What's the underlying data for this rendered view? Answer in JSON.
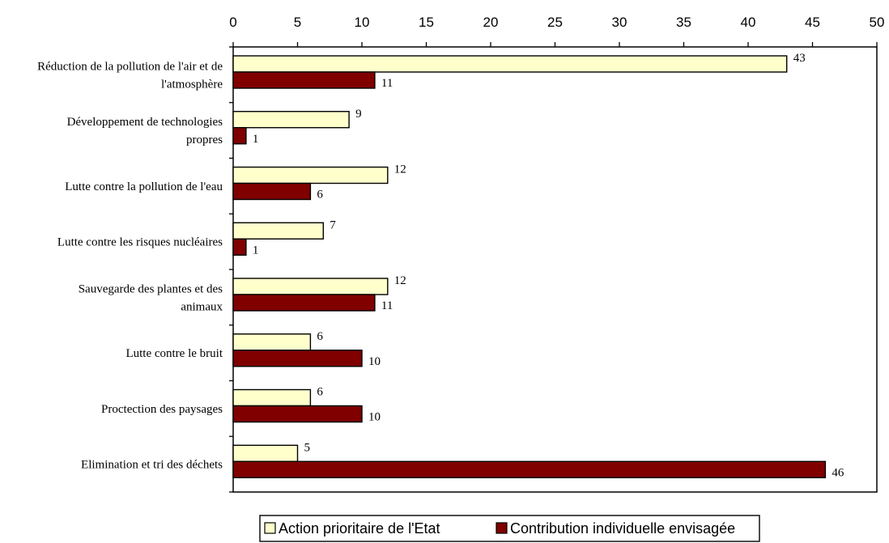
{
  "chart_data": {
    "type": "bar",
    "orientation": "horizontal",
    "categories": [
      [
        "Réduction de la pollution de l'air et de",
        "l'atmosphère"
      ],
      [
        "Développement de technologies",
        "propres"
      ],
      [
        "Lutte contre la pollution de l'eau"
      ],
      [
        "Lutte contre les risques nucléaires"
      ],
      [
        "Sauvegarde des plantes et des",
        "animaux"
      ],
      [
        "Lutte contre le bruit"
      ],
      [
        "Proctection des paysages"
      ],
      [
        "Elimination et tri des déchets"
      ]
    ],
    "series": [
      {
        "name": "Action prioritaire de l'Etat",
        "color": "#FFFFCC",
        "values": [
          43,
          9,
          12,
          7,
          12,
          6,
          6,
          5
        ]
      },
      {
        "name": "Contribution individuelle envisagée",
        "color": "#800000",
        "values": [
          11,
          1,
          6,
          1,
          11,
          10,
          10,
          46
        ]
      }
    ],
    "xlim": [
      0,
      50
    ],
    "xticks": [
      0,
      5,
      10,
      15,
      20,
      25,
      30,
      35,
      40,
      45,
      50
    ],
    "x_axis_position": "top",
    "legend_position": "bottom",
    "grid": false,
    "title": "",
    "xlabel": "",
    "ylabel": ""
  }
}
